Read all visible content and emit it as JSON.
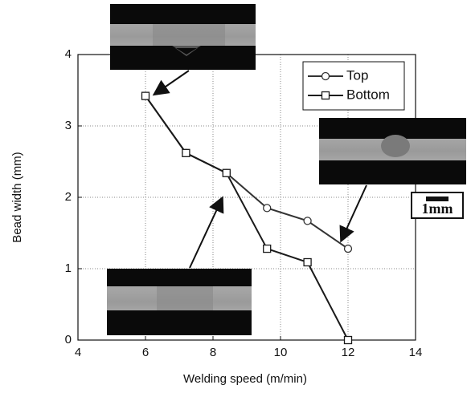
{
  "chart_data": {
    "type": "line",
    "x_label": "Welding speed (m/min)",
    "y_label": "Bead width (mm)",
    "xlim": [
      4,
      14
    ],
    "xticks": [
      4,
      6,
      8,
      10,
      12,
      14
    ],
    "ylim": [
      0,
      4
    ],
    "yticks": [
      0,
      1,
      2,
      3,
      4
    ],
    "grid": true,
    "legend_position": "upper right",
    "scale_bar_label": "1mm",
    "series": [
      {
        "name": "Top",
        "color": "#333333",
        "marker": "circle",
        "x": [
          6,
          7.2,
          8.4,
          9.6,
          10.8,
          12
        ],
        "values": [
          3.42,
          2.62,
          2.34,
          1.85,
          1.67,
          1.28
        ]
      },
      {
        "name": "Bottom",
        "color": "#1a1a1a",
        "marker": "square",
        "x": [
          6,
          7.2,
          8.4,
          9.6,
          10.8,
          12
        ],
        "values": [
          3.42,
          2.62,
          2.34,
          1.28,
          1.09,
          0
        ]
      }
    ]
  }
}
